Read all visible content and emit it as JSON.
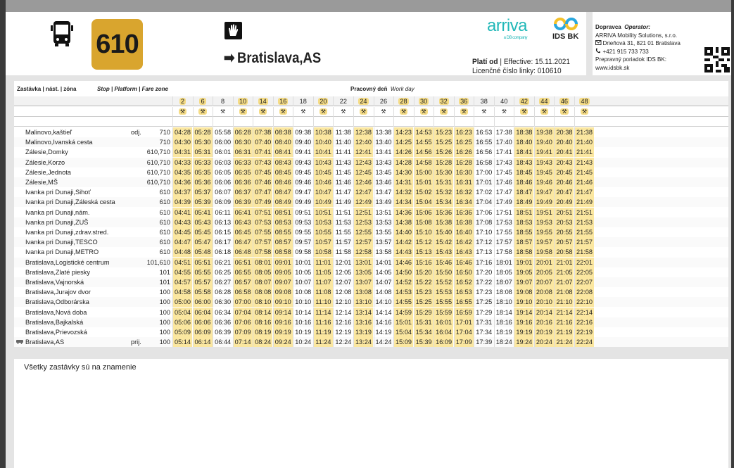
{
  "header": {
    "line_number": "610",
    "destination": "Bratislava,AS",
    "arrow": "➡",
    "valid_label": "Platí od",
    "valid_text": "| Effective: 15.11.2021",
    "license": "Licenčné číslo linky: 010610",
    "logo_arriva": "arriva",
    "logo_arriva_sub": "a DB company",
    "logo_ids": "IDS BK"
  },
  "operator": {
    "label": "Dopravca",
    "label_en": "Operator:",
    "name": "ARRIVA Mobility Solutions, s.r.o.",
    "address": "Drieňová 31, 821 01 Bratislava",
    "phone": "+421 915 733 733",
    "rules": "Prepravný poriadok IDS BK:",
    "url": "www.idsbk.sk"
  },
  "table": {
    "col_stop": "Zastávka | nást. | zóna",
    "col_stop_en": "Stop | Platform | Fare zone",
    "day": "Pracovný deň",
    "day_en": "Work day",
    "workday_icon": "⚒",
    "stops": [
      {
        "name": "Malinovo,kaštieľ",
        "dir": "odj.",
        "zone": "710"
      },
      {
        "name": "Malinovo,Ivanská cesta",
        "dir": "",
        "zone": "710"
      },
      {
        "name": "Zálesie,Domky",
        "dir": "",
        "zone": "610,710"
      },
      {
        "name": "Zálesie,Korzo",
        "dir": "",
        "zone": "610,710"
      },
      {
        "name": "Zálesie,Jednota",
        "dir": "",
        "zone": "610,710"
      },
      {
        "name": "Zálesie,MŠ",
        "dir": "",
        "zone": "610,710"
      },
      {
        "name": "Ivanka pri Dunaji,Sihoť",
        "dir": "",
        "zone": "610"
      },
      {
        "name": "Ivanka pri Dunaji,Záleská cesta",
        "dir": "",
        "zone": "610"
      },
      {
        "name": "Ivanka pri Dunaji,nám.",
        "dir": "",
        "zone": "610"
      },
      {
        "name": "Ivanka pri Dunaji,ZUŠ",
        "dir": "",
        "zone": "610"
      },
      {
        "name": "Ivanka pri Dunaji,zdrav.stred.",
        "dir": "",
        "zone": "610"
      },
      {
        "name": "Ivanka pri Dunaji,TESCO",
        "dir": "",
        "zone": "610"
      },
      {
        "name": "Ivanka pri Dunaji,METRO",
        "dir": "",
        "zone": "610"
      },
      {
        "name": "Bratislava,Logistické centrum",
        "dir": "",
        "zone": "101,610"
      },
      {
        "name": "Bratislava,Zlaté piesky",
        "dir": "",
        "zone": "101"
      },
      {
        "name": "Bratislava,Vajnorská",
        "dir": "",
        "zone": "101"
      },
      {
        "name": "Bratislava,Jurajov dvor",
        "dir": "",
        "zone": "100"
      },
      {
        "name": "Bratislava,Odborárska",
        "dir": "",
        "zone": "100"
      },
      {
        "name": "Bratislava,Nová doba",
        "dir": "",
        "zone": "100"
      },
      {
        "name": "Bratislava,Bajkalská",
        "dir": "",
        "zone": "100"
      },
      {
        "name": "Bratislava,Prievozská",
        "dir": "",
        "zone": "100"
      },
      {
        "name": "Bratislava,AS",
        "dir": "prij.",
        "zone": "100",
        "icon": "bus-icon"
      }
    ],
    "trips": [
      {
        "no": "2",
        "hl": true,
        "t": [
          "04:28",
          "04:30",
          "04:31",
          "04:33",
          "04:35",
          "04:36",
          "04:37",
          "04:39",
          "04:41",
          "04:43",
          "04:45",
          "04:47",
          "04:48",
          "04:51",
          "04:55",
          "04:57",
          "04:58",
          "05:00",
          "05:04",
          "05:06",
          "05:09",
          "05:14"
        ]
      },
      {
        "no": "6",
        "hl": true,
        "t": [
          "05:28",
          "05:30",
          "05:31",
          "05:33",
          "05:35",
          "05:36",
          "05:37",
          "05:39",
          "05:41",
          "05:43",
          "05:45",
          "05:47",
          "05:48",
          "05:51",
          "05:55",
          "05:57",
          "05:58",
          "06:00",
          "06:04",
          "06:06",
          "06:09",
          "06:14"
        ]
      },
      {
        "no": "8",
        "hl": false,
        "t": [
          "05:58",
          "06:00",
          "06:01",
          "06:03",
          "06:05",
          "06:06",
          "06:07",
          "06:09",
          "06:11",
          "06:13",
          "06:15",
          "06:17",
          "06:18",
          "06:21",
          "06:25",
          "06:27",
          "06:28",
          "06:30",
          "06:34",
          "06:36",
          "06:39",
          "06:44"
        ]
      },
      {
        "no": "10",
        "hl": true,
        "t": [
          "06:28",
          "06:30",
          "06:31",
          "06:33",
          "06:35",
          "06:36",
          "06:37",
          "06:39",
          "06:41",
          "06:43",
          "06:45",
          "06:47",
          "06:48",
          "06:51",
          "06:55",
          "06:57",
          "06:58",
          "07:00",
          "07:04",
          "07:06",
          "07:09",
          "07:14"
        ]
      },
      {
        "no": "14",
        "hl": true,
        "t": [
          "07:38",
          "07:40",
          "07:41",
          "07:43",
          "07:45",
          "07:46",
          "07:47",
          "07:49",
          "07:51",
          "07:53",
          "07:55",
          "07:57",
          "07:58",
          "08:01",
          "08:05",
          "08:07",
          "08:08",
          "08:10",
          "08:14",
          "08:16",
          "08:19",
          "08:24"
        ]
      },
      {
        "no": "16",
        "hl": true,
        "t": [
          "08:38",
          "08:40",
          "08:41",
          "08:43",
          "08:45",
          "08:46",
          "08:47",
          "08:49",
          "08:51",
          "08:53",
          "08:55",
          "08:57",
          "08:58",
          "09:01",
          "09:05",
          "09:07",
          "09:08",
          "09:10",
          "09:14",
          "09:16",
          "09:19",
          "09:24"
        ]
      },
      {
        "no": "18",
        "hl": false,
        "t": [
          "09:38",
          "09:40",
          "09:41",
          "09:43",
          "09:45",
          "09:46",
          "09:47",
          "09:49",
          "09:51",
          "09:53",
          "09:55",
          "09:57",
          "09:58",
          "10:01",
          "10:05",
          "10:07",
          "10:08",
          "10:10",
          "10:14",
          "10:16",
          "10:19",
          "10:24"
        ]
      },
      {
        "no": "20",
        "hl": true,
        "t": [
          "10:38",
          "10:40",
          "10:41",
          "10:43",
          "10:45",
          "10:46",
          "10:47",
          "10:49",
          "10:51",
          "10:53",
          "10:55",
          "10:57",
          "10:58",
          "11:01",
          "11:05",
          "11:07",
          "11:08",
          "11:10",
          "11:14",
          "11:16",
          "11:19",
          "11:24"
        ]
      },
      {
        "no": "22",
        "hl": false,
        "t": [
          "11:38",
          "11:40",
          "11:41",
          "11:43",
          "11:45",
          "11:46",
          "11:47",
          "11:49",
          "11:51",
          "11:53",
          "11:55",
          "11:57",
          "11:58",
          "12:01",
          "12:05",
          "12:07",
          "12:08",
          "12:10",
          "12:14",
          "12:16",
          "12:19",
          "12:24"
        ]
      },
      {
        "no": "24",
        "hl": true,
        "t": [
          "12:38",
          "12:40",
          "12:41",
          "12:43",
          "12:45",
          "12:46",
          "12:47",
          "12:49",
          "12:51",
          "12:53",
          "12:55",
          "12:57",
          "12:58",
          "13:01",
          "13:05",
          "13:07",
          "13:08",
          "13:10",
          "13:14",
          "13:16",
          "13:19",
          "13:24"
        ]
      },
      {
        "no": "26",
        "hl": false,
        "t": [
          "13:38",
          "13:40",
          "13:41",
          "13:43",
          "13:45",
          "13:46",
          "13:47",
          "13:49",
          "13:51",
          "13:53",
          "13:55",
          "13:57",
          "13:58",
          "14:01",
          "14:05",
          "14:07",
          "14:08",
          "14:10",
          "14:14",
          "14:16",
          "14:19",
          "14:24"
        ]
      },
      {
        "no": "28",
        "hl": true,
        "t": [
          "14:23",
          "14:25",
          "14:26",
          "14:28",
          "14:30",
          "14:31",
          "14:32",
          "14:34",
          "14:36",
          "14:38",
          "14:40",
          "14:42",
          "14:43",
          "14:46",
          "14:50",
          "14:52",
          "14:53",
          "14:55",
          "14:59",
          "15:01",
          "15:04",
          "15:09"
        ]
      },
      {
        "no": "30",
        "hl": true,
        "t": [
          "14:53",
          "14:55",
          "14:56",
          "14:58",
          "15:00",
          "15:01",
          "15:02",
          "15:04",
          "15:06",
          "15:08",
          "15:10",
          "15:12",
          "15:13",
          "15:16",
          "15:20",
          "15:22",
          "15:23",
          "15:25",
          "15:29",
          "15:31",
          "15:34",
          "15:39"
        ]
      },
      {
        "no": "32",
        "hl": true,
        "t": [
          "15:23",
          "15:25",
          "15:26",
          "15:28",
          "15:30",
          "15:31",
          "15:32",
          "15:34",
          "15:36",
          "15:38",
          "15:40",
          "15:42",
          "15:43",
          "15:46",
          "15:50",
          "15:52",
          "15:53",
          "15:55",
          "15:59",
          "16:01",
          "16:04",
          "16:09"
        ]
      },
      {
        "no": "36",
        "hl": true,
        "t": [
          "16:23",
          "16:25",
          "16:26",
          "16:28",
          "16:30",
          "16:31",
          "16:32",
          "16:34",
          "16:36",
          "16:38",
          "16:40",
          "16:42",
          "16:43",
          "16:46",
          "16:50",
          "16:52",
          "16:53",
          "16:55",
          "16:59",
          "17:01",
          "17:04",
          "17:09"
        ]
      },
      {
        "no": "38",
        "hl": false,
        "t": [
          "16:53",
          "16:55",
          "16:56",
          "16:58",
          "17:00",
          "17:01",
          "17:02",
          "17:04",
          "17:06",
          "17:08",
          "17:10",
          "17:12",
          "17:13",
          "17:16",
          "17:20",
          "17:22",
          "17:23",
          "17:25",
          "17:29",
          "17:31",
          "17:34",
          "17:39"
        ]
      },
      {
        "no": "40",
        "hl": false,
        "t": [
          "17:38",
          "17:40",
          "17:41",
          "17:43",
          "17:45",
          "17:46",
          "17:47",
          "17:49",
          "17:51",
          "17:53",
          "17:55",
          "17:57",
          "17:58",
          "18:01",
          "18:05",
          "18:07",
          "18:08",
          "18:10",
          "18:14",
          "18:16",
          "18:19",
          "18:24"
        ]
      },
      {
        "no": "42",
        "hl": true,
        "t": [
          "18:38",
          "18:40",
          "18:41",
          "18:43",
          "18:45",
          "18:46",
          "18:47",
          "18:49",
          "18:51",
          "18:53",
          "18:55",
          "18:57",
          "18:58",
          "19:01",
          "19:05",
          "19:07",
          "19:08",
          "19:10",
          "19:14",
          "19:16",
          "19:19",
          "19:24"
        ]
      },
      {
        "no": "44",
        "hl": true,
        "t": [
          "19:38",
          "19:40",
          "19:41",
          "19:43",
          "19:45",
          "19:46",
          "19:47",
          "19:49",
          "19:51",
          "19:53",
          "19:55",
          "19:57",
          "19:58",
          "20:01",
          "20:05",
          "20:07",
          "20:08",
          "20:10",
          "20:14",
          "20:16",
          "20:19",
          "20:24"
        ]
      },
      {
        "no": "46",
        "hl": true,
        "t": [
          "20:38",
          "20:40",
          "20:41",
          "20:43",
          "20:45",
          "20:46",
          "20:47",
          "20:49",
          "20:51",
          "20:53",
          "20:55",
          "20:57",
          "20:58",
          "21:01",
          "21:05",
          "21:07",
          "21:08",
          "21:10",
          "21:14",
          "21:16",
          "21:19",
          "21:24"
        ]
      },
      {
        "no": "48",
        "hl": true,
        "t": [
          "21:38",
          "21:40",
          "21:41",
          "21:43",
          "21:45",
          "21:46",
          "21:47",
          "21:49",
          "21:51",
          "21:53",
          "21:55",
          "21:57",
          "21:58",
          "22:01",
          "22:05",
          "22:07",
          "22:08",
          "22:10",
          "22:14",
          "22:16",
          "22:19",
          "22:24"
        ]
      }
    ]
  },
  "note": "Všetky zastávky sú na znamenie",
  "colors": {
    "accent": "#d9a52e",
    "highlight": "#fbe7a0",
    "arriva": "#22b8b8"
  }
}
